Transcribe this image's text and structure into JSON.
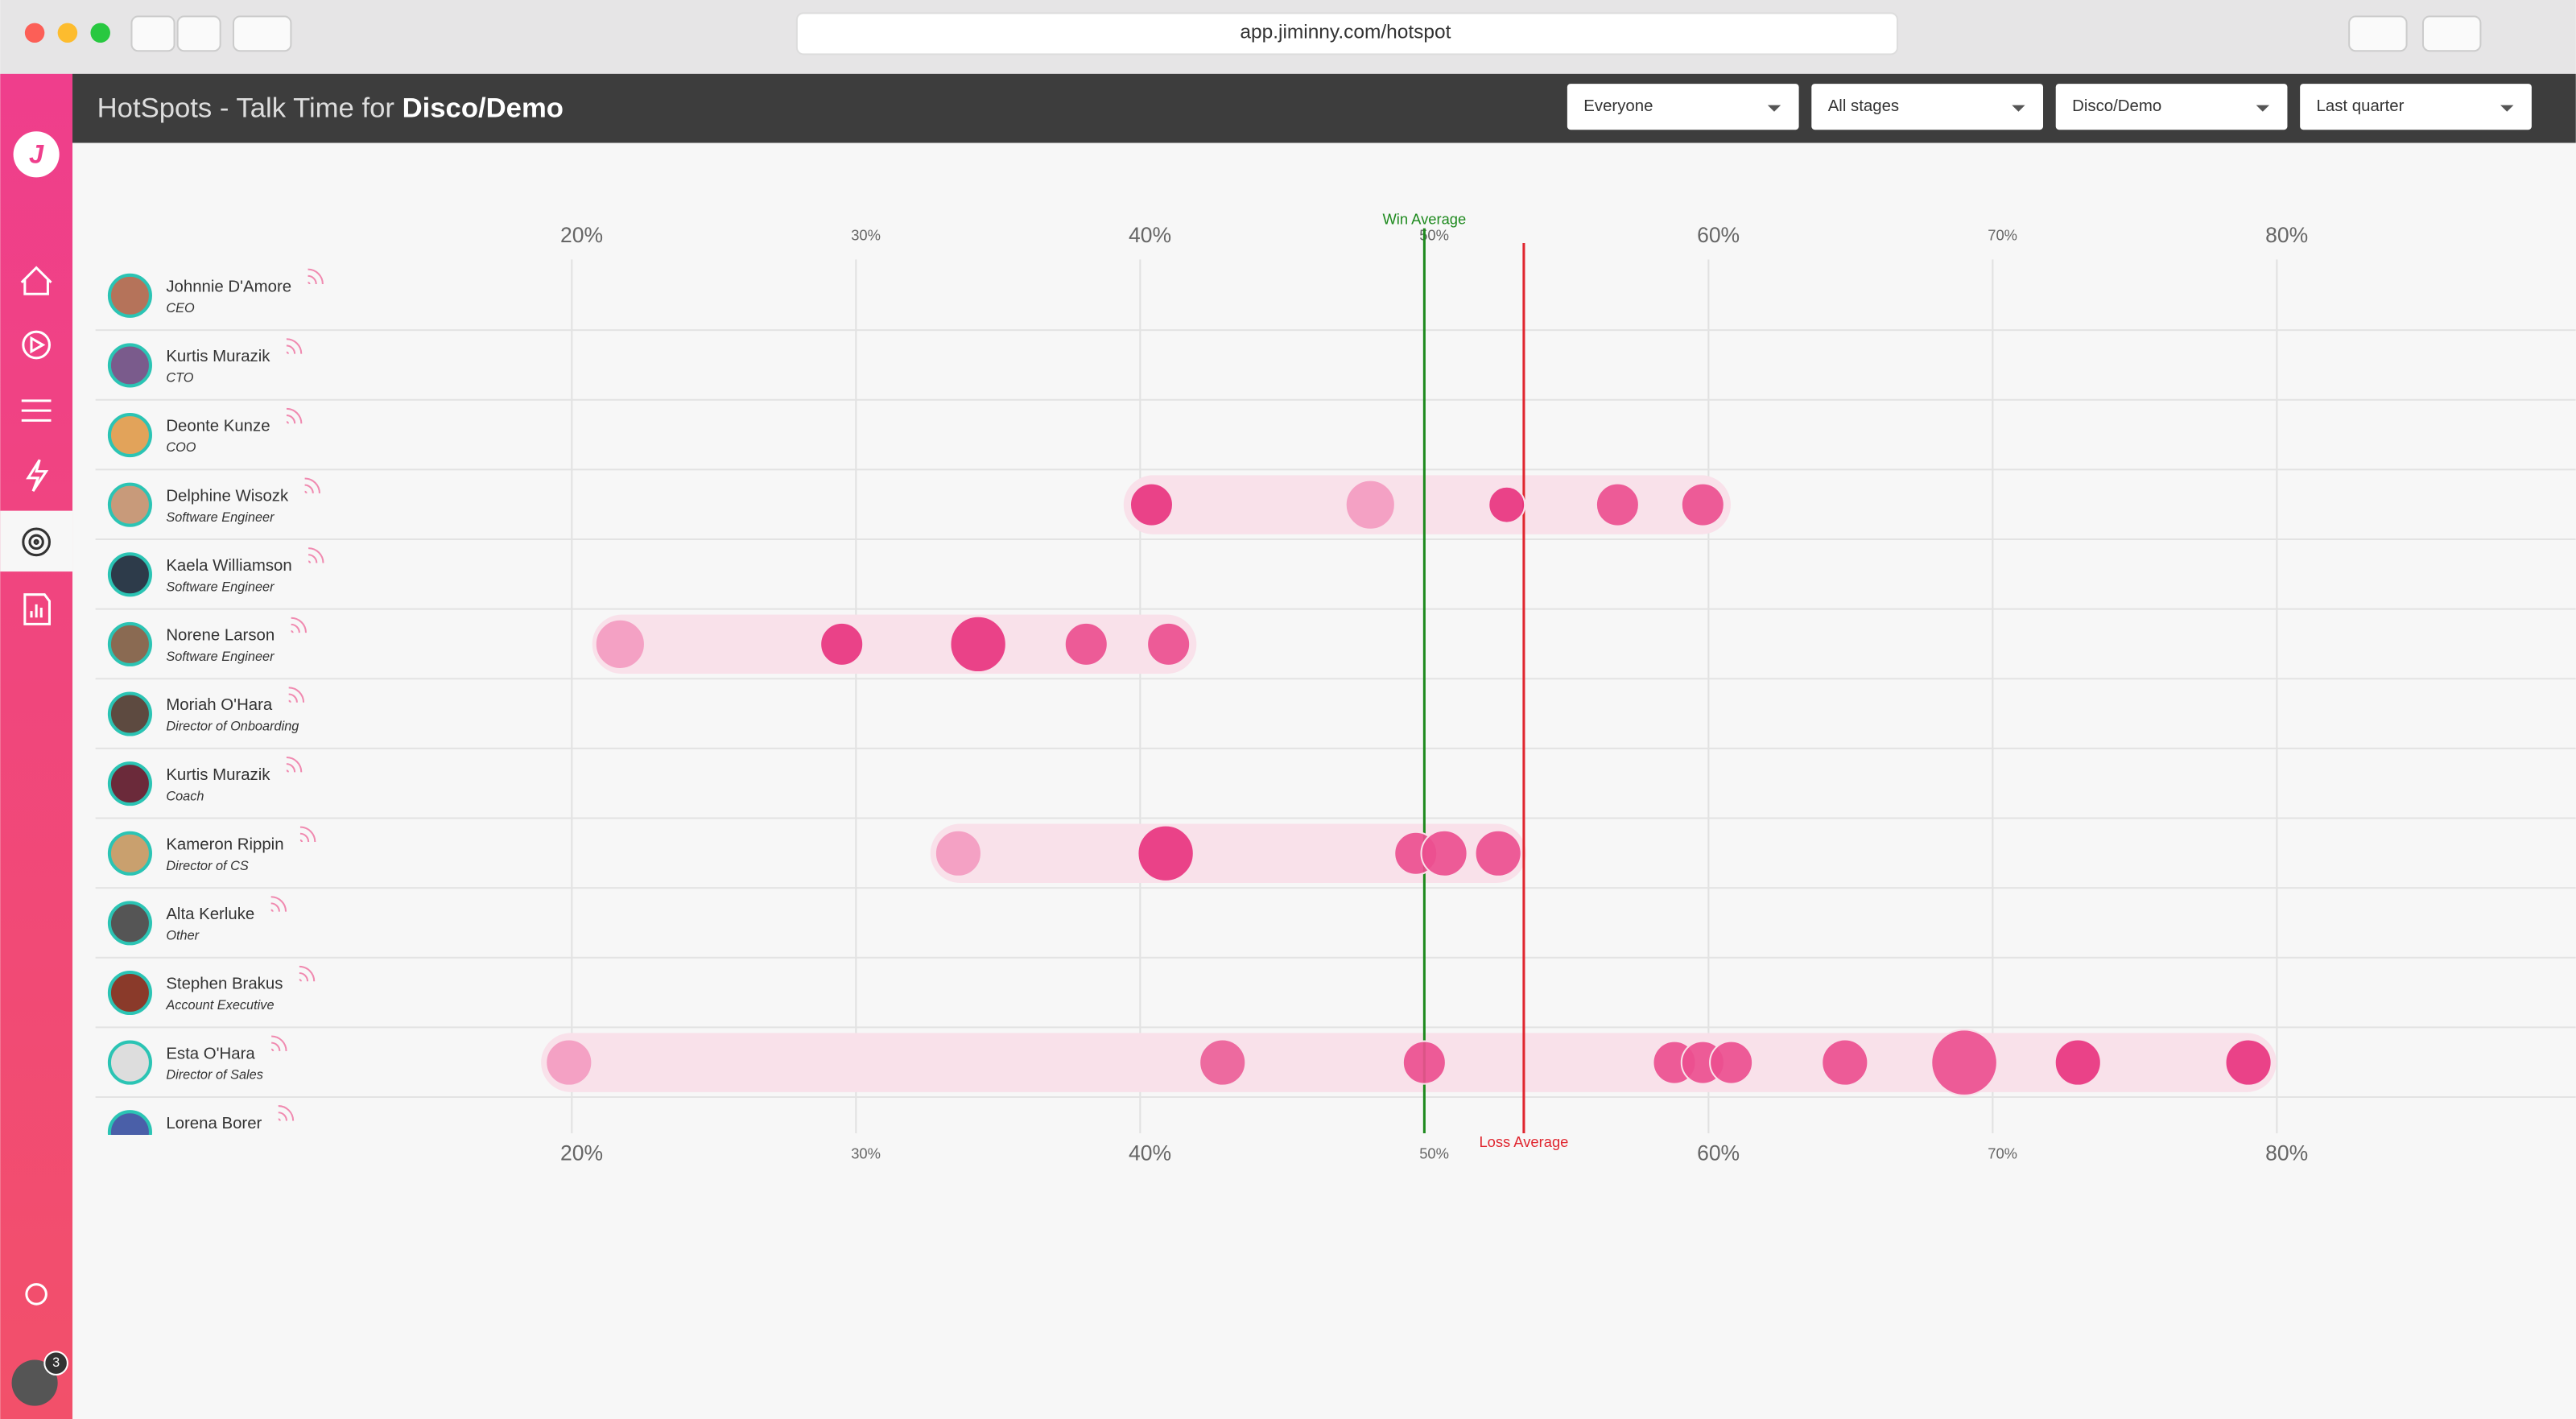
{
  "browser": {
    "url": "app.jiminny.com/hotspot"
  },
  "header": {
    "title": "HotSpots - Talk Time for",
    "topic": "Disco/Demo"
  },
  "filters": [
    "Everyone",
    "All stages",
    "Disco/Demo",
    "Last quarter"
  ],
  "notifications": 3,
  "chart_data": {
    "type": "bubble",
    "xlim": [
      20,
      80
    ],
    "xticks": [
      {
        "value": 20,
        "label": "20%"
      },
      {
        "value": 30,
        "label": "30%"
      },
      {
        "value": 40,
        "label": "40%"
      },
      {
        "value": 50,
        "label": "50%"
      },
      {
        "value": 60,
        "label": "60%"
      },
      {
        "value": 70,
        "label": "70%"
      },
      {
        "value": 80,
        "label": "80%"
      }
    ],
    "grid": true,
    "band_color": "#f9e1ea",
    "win_average": {
      "label": "Win Average",
      "value": 50,
      "color": "#1e8a1e"
    },
    "loss_average": {
      "label": "Loss Average",
      "value": 53.5,
      "color": "#e0262f"
    },
    "rows": [
      {
        "name": "Johnnie D'Amore",
        "role": "CEO"
      },
      {
        "name": "Kurtis Murazik",
        "role": "CTO"
      },
      {
        "name": "Deonte Kunze",
        "role": "COO"
      },
      {
        "name": "Delphine Wisozk",
        "role": "Software Engineer",
        "talk_time": [
          40.4,
          48.1,
          52.9,
          56.8,
          59.8
        ],
        "sizes": [
          13,
          15,
          11,
          13,
          13
        ],
        "colors": [
          "#e8347f",
          "#f39bc0",
          "#e8347f",
          "#ec4f8f",
          "#ec4f8f"
        ]
      },
      {
        "name": "Kaela Williamson",
        "role": "Software Engineer"
      },
      {
        "name": "Norene Larson",
        "role": "Software Engineer",
        "talk_time": [
          21.7,
          29.5,
          34.3,
          38.1,
          41.0
        ],
        "sizes": [
          15,
          13,
          17,
          13,
          13
        ],
        "colors": [
          "#f39bc0",
          "#e8347f",
          "#e8347f",
          "#ec4f8f",
          "#ec4f8f"
        ]
      },
      {
        "name": "Moriah O'Hara",
        "role": "Director of Onboarding"
      },
      {
        "name": "Kurtis Murazik",
        "role": "Coach"
      },
      {
        "name": "Kameron Rippin",
        "role": "Director of CS",
        "talk_time": [
          33.6,
          40.9,
          49.7,
          50.7,
          52.6
        ],
        "sizes": [
          14,
          17,
          13,
          14,
          14
        ],
        "colors": [
          "#f39bc0",
          "#e8347f",
          "#ec4f8f",
          "#ec4f8f",
          "#ec4f8f"
        ]
      },
      {
        "name": "Alta Kerluke",
        "role": "Other"
      },
      {
        "name": "Stephen Brakus",
        "role": "Account Executive"
      },
      {
        "name": "Esta O'Hara",
        "role": "Director of Sales",
        "talk_time": [
          19.9,
          42.9,
          50.0,
          58.8,
          59.8,
          60.8,
          64.8,
          69.0,
          73.0,
          79.0
        ],
        "sizes": [
          14,
          14,
          13,
          13,
          13,
          13,
          14,
          20,
          14,
          14
        ],
        "colors": [
          "#f39bc0",
          "#ec5f98",
          "#ec4f8f",
          "#ec4f8f",
          "#ec4f8f",
          "#ec4f8f",
          "#ec4f8f",
          "#ec4f8f",
          "#e8347f",
          "#e8347f"
        ]
      },
      {
        "name": "Lorena Borer"
      }
    ]
  }
}
